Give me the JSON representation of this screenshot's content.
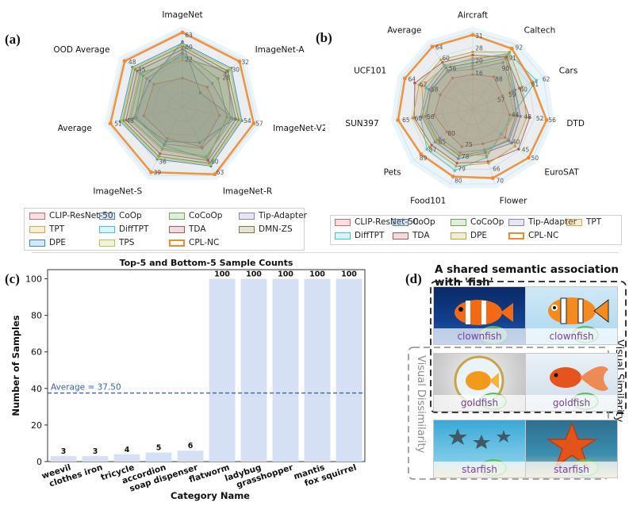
{
  "panels": {
    "a": "(a)",
    "b": "(b)",
    "c": "(c)",
    "d": "(d)"
  },
  "chart_data": [
    {
      "type": "radar",
      "panel": "(a)",
      "axes": [
        "ImageNet",
        "ImageNet-A",
        "ImageNet-V2",
        "ImageNet-R",
        "ImageNet-S",
        "Average",
        "OOD Average"
      ],
      "visible_value_labels": [
        {
          "axis": "ImageNet",
          "values": [
            "63",
            "60",
            "22"
          ]
        },
        {
          "axis": "ImageNet-A",
          "values": [
            "32",
            "30",
            "28"
          ]
        },
        {
          "axis": "ImageNet-V2",
          "values": [
            "57",
            "54"
          ]
        },
        {
          "axis": "ImageNet-R",
          "values": [
            "63",
            "60"
          ]
        },
        {
          "axis": "ImageNet-S",
          "values": [
            "39",
            "36"
          ]
        },
        {
          "axis": "Average",
          "values": [
            "51",
            "48"
          ]
        },
        {
          "axis": "OOD Average",
          "values": [
            "48",
            "45"
          ]
        }
      ],
      "grid_values": [
        "22",
        "58"
      ],
      "series": [
        {
          "name": "CLIP-ResNet-50",
          "color": "#e06666",
          "values": [
            0.38,
            0.42,
            0.5,
            0.58,
            0.46,
            0.52,
            0.48
          ]
        },
        {
          "name": "CoOp",
          "color": "#4f81bd",
          "values": [
            0.86,
            0.3,
            0.7,
            0.52,
            0.5,
            0.66,
            0.55
          ]
        },
        {
          "name": "CoCoOp",
          "color": "#6aa84f",
          "values": [
            0.72,
            0.6,
            0.6,
            0.76,
            0.56,
            0.64,
            0.66
          ]
        },
        {
          "name": "Tip-Adapter",
          "color": "#8e7cc3",
          "values": [
            0.7,
            0.5,
            0.66,
            0.6,
            0.54,
            0.62,
            0.6
          ]
        },
        {
          "name": "TPT",
          "color": "#d9a441",
          "values": [
            0.62,
            0.78,
            0.64,
            0.74,
            0.62,
            0.72,
            0.72
          ]
        },
        {
          "name": "DiffTPT",
          "color": "#45c1d1",
          "values": [
            0.66,
            0.74,
            0.68,
            0.72,
            0.6,
            0.7,
            0.7
          ]
        },
        {
          "name": "TDA",
          "color": "#a25a5a",
          "values": [
            0.76,
            0.72,
            0.72,
            0.78,
            0.68,
            0.76,
            0.76
          ]
        },
        {
          "name": "DMN-ZS",
          "color": "#7a7a3a",
          "values": [
            0.8,
            0.76,
            0.76,
            0.82,
            0.72,
            0.8,
            0.8
          ]
        },
        {
          "name": "DPE",
          "color": "#3d85c6",
          "values": [
            0.84,
            0.82,
            0.8,
            0.86,
            0.76,
            0.84,
            0.84
          ]
        },
        {
          "name": "TPS",
          "color": "#b5c74a",
          "values": [
            0.82,
            0.8,
            0.78,
            0.84,
            0.74,
            0.82,
            0.82
          ]
        },
        {
          "name": "CPL-NC",
          "color": "#f08a2c",
          "values": [
            0.98,
            0.96,
            0.96,
            0.98,
            0.95,
            0.97,
            0.97
          ]
        }
      ],
      "legend": [
        [
          "CLIP-ResNet-50",
          "#e06666"
        ],
        [
          "CoOp",
          "#4f81bd"
        ],
        [
          "CoCoOp",
          "#6aa84f"
        ],
        [
          "Tip-Adapter",
          "#8e7cc3"
        ],
        [
          "TPT",
          "#d9a441"
        ],
        [
          "DiffTPT",
          "#45c1d1"
        ],
        [
          "TDA",
          "#a25a5a"
        ],
        [
          "DMN-ZS",
          "#7a7a3a"
        ],
        [
          "DPE",
          "#3d85c6"
        ],
        [
          "TPS",
          "#b5c74a"
        ],
        [
          "CPL-NC",
          "#f08a2c"
        ]
      ]
    },
    {
      "type": "radar",
      "panel": "(b)",
      "axes": [
        "Aircraft",
        "Caltech",
        "Cars",
        "DTD",
        "EuroSAT",
        "Flower",
        "Food101",
        "Pets",
        "SUN397",
        "UCF101",
        "Average"
      ],
      "visible_value_labels": [
        {
          "axis": "Aircraft",
          "values": [
            "31",
            "28",
            "20",
            "16"
          ]
        },
        {
          "axis": "Caltech",
          "values": [
            "92",
            "91",
            "90",
            "88"
          ]
        },
        {
          "axis": "Cars",
          "values": [
            "62",
            "61",
            "60",
            "59",
            "57"
          ]
        },
        {
          "axis": "DTD",
          "values": [
            "56",
            "52",
            "48",
            "44"
          ]
        },
        {
          "axis": "EuroSAT",
          "values": [
            "50",
            "45",
            "40"
          ]
        },
        {
          "axis": "Flower",
          "values": [
            "70",
            "66"
          ]
        },
        {
          "axis": "Food101",
          "values": [
            "80",
            "79",
            "78",
            "75"
          ]
        },
        {
          "axis": "Pets",
          "values": [
            "89",
            "87",
            "85",
            "80"
          ]
        },
        {
          "axis": "SUN397",
          "values": [
            "65",
            "60",
            "56"
          ]
        },
        {
          "axis": "UCF101",
          "values": [
            "64",
            "62",
            "58"
          ]
        },
        {
          "axis": "Average",
          "values": [
            "64",
            "60",
            "56"
          ]
        }
      ],
      "series": [
        {
          "name": "CLIP-ResNet-50",
          "color": "#e06666",
          "values": [
            0.45,
            0.5,
            0.42,
            0.48,
            0.55,
            0.46,
            0.5,
            0.44,
            0.5,
            0.46,
            0.48
          ]
        },
        {
          "name": "CoOp",
          "color": "#4f81bd",
          "values": [
            0.6,
            0.82,
            0.6,
            0.62,
            0.66,
            0.58,
            0.66,
            0.64,
            0.66,
            0.62,
            0.64
          ]
        },
        {
          "name": "CoCoOp",
          "color": "#6aa84f",
          "values": [
            0.56,
            0.78,
            0.58,
            0.56,
            0.6,
            0.56,
            0.62,
            0.6,
            0.62,
            0.58,
            0.6
          ]
        },
        {
          "name": "Tip-Adapter",
          "color": "#8e7cc3",
          "values": [
            0.52,
            0.72,
            0.56,
            0.58,
            0.62,
            0.54,
            0.58,
            0.56,
            0.6,
            0.6,
            0.58
          ]
        },
        {
          "name": "TPT",
          "color": "#d9a441",
          "values": [
            0.66,
            0.84,
            0.52,
            0.54,
            0.5,
            0.62,
            0.6,
            0.62,
            0.64,
            0.72,
            0.66
          ]
        },
        {
          "name": "DiffTPT",
          "color": "#45c1d1",
          "values": [
            0.64,
            0.86,
            0.9,
            0.52,
            0.48,
            0.64,
            0.82,
            0.78,
            0.68,
            0.66,
            0.68
          ]
        },
        {
          "name": "TDA",
          "color": "#a25a5a",
          "values": [
            0.7,
            0.8,
            0.66,
            0.74,
            0.78,
            0.7,
            0.72,
            0.7,
            0.76,
            0.82,
            0.72
          ]
        },
        {
          "name": "DPE",
          "color": "#b5a642",
          "values": [
            0.74,
            0.88,
            0.7,
            0.7,
            0.72,
            0.72,
            0.76,
            0.74,
            0.78,
            0.76,
            0.76
          ]
        },
        {
          "name": "CPL-NC",
          "color": "#f08a2c",
          "values": [
            0.96,
            0.93,
            0.84,
            0.96,
            0.95,
            0.92,
            0.9,
            0.88,
            0.97,
            0.96,
            0.96
          ]
        }
      ],
      "legend": [
        [
          "CLIP-ResNet-50",
          "#e06666"
        ],
        [
          "CoOp",
          "#4f81bd"
        ],
        [
          "CoCoOp",
          "#6aa84f"
        ],
        [
          "Tip-Adapter",
          "#8e7cc3"
        ],
        [
          "TPT",
          "#d9a441"
        ],
        [
          "DiffTPT",
          "#45c1d1"
        ],
        [
          "TDA",
          "#a25a5a"
        ],
        [
          "DPE",
          "#b5a642"
        ],
        [
          "CPL-NC",
          "#f08a2c"
        ]
      ]
    },
    {
      "type": "bar",
      "panel": "(c)",
      "title": "Top-5 and Bottom-5 Sample Counts",
      "xlabel": "Category Name",
      "ylabel": "Number of Samples",
      "categories": [
        "weevil",
        "clothes iron",
        "tricycle",
        "accordion",
        "soap dispenser",
        "flatworm",
        "ladybug",
        "grasshopper",
        "mantis",
        "fox squirrel"
      ],
      "values": [
        3,
        3,
        4,
        5,
        6,
        100,
        100,
        100,
        100,
        100
      ],
      "ylim": [
        0,
        105
      ],
      "yticks": [
        0,
        20,
        40,
        60,
        80,
        100
      ],
      "average_line": {
        "value": 37.5,
        "label": "Average = 37.50"
      },
      "bar_color": "#d6e0f5",
      "avg_color": "#3a5fb0"
    }
  ],
  "figure_d": {
    "title": "A shared semantic association with 'fish'",
    "label_similarity": "Visual Similarity",
    "label_dissimilarity": "Visual Dissimilarity",
    "images": [
      {
        "caption": "clownfish",
        "kind": "clownfish-photo"
      },
      {
        "caption": "clownfish",
        "kind": "clownfish-cartoon"
      },
      {
        "caption": "goldfish",
        "kind": "goldfish-bowl"
      },
      {
        "caption": "goldfish",
        "kind": "goldfish-red"
      },
      {
        "caption": "starfish",
        "kind": "starfish-underwater"
      },
      {
        "caption": "starfish",
        "kind": "starfish-orange"
      }
    ]
  }
}
